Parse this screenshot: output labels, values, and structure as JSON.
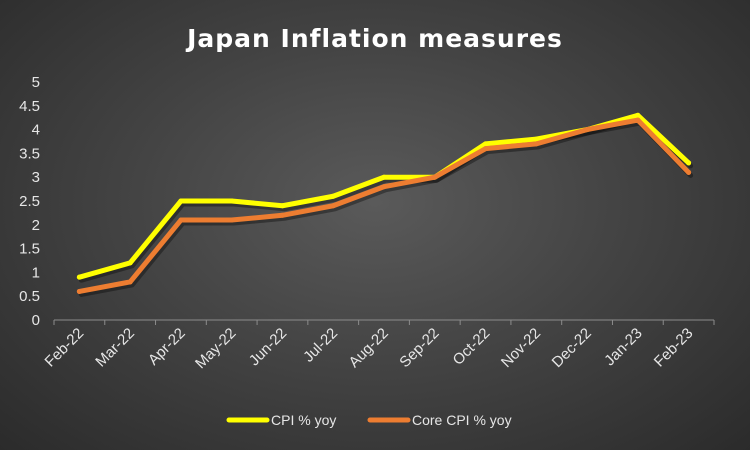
{
  "chart_data": {
    "type": "line",
    "title": "Japan Inflation measures",
    "categories": [
      "Feb-22",
      "Mar-22",
      "Apr-22",
      "May-22",
      "Jun-22",
      "Jul-22",
      "Aug-22",
      "Sep-22",
      "Oct-22",
      "Nov-22",
      "Dec-22",
      "Jan-23",
      "Feb-23"
    ],
    "series": [
      {
        "name": "CPI % yoy",
        "color": "#ffff00",
        "values": [
          0.9,
          1.2,
          2.5,
          2.5,
          2.4,
          2.6,
          3.0,
          3.0,
          3.7,
          3.8,
          4.0,
          4.3,
          3.3
        ]
      },
      {
        "name": "Core CPI % yoy",
        "color": "#ed7d31",
        "values": [
          0.6,
          0.8,
          2.1,
          2.1,
          2.2,
          2.4,
          2.8,
          3.0,
          3.6,
          3.7,
          4.0,
          4.2,
          3.1
        ]
      }
    ],
    "ylim": [
      0,
      5
    ],
    "yticks": [
      0,
      0.5,
      1,
      1.5,
      2,
      2.5,
      3,
      3.5,
      4,
      4.5,
      5
    ],
    "grid": false,
    "legend_position": "bottom"
  }
}
